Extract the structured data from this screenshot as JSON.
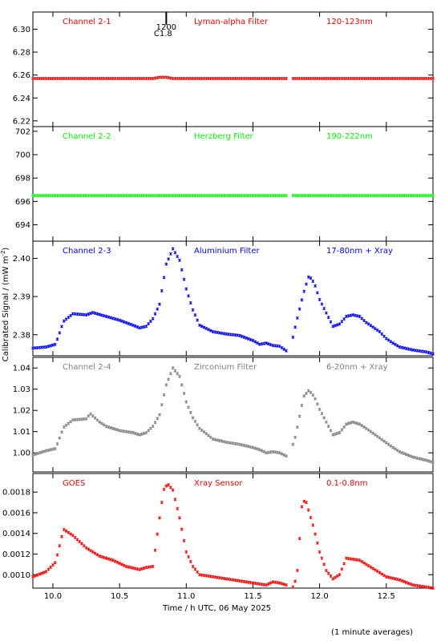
{
  "chart_data": [
    {
      "type": "scatter",
      "channel_label": "Channel 2-1",
      "filter_label": "Lyman-alpha Filter",
      "wavelength_label": "120-123nm",
      "color": "#ff0000",
      "ylim": [
        6.215,
        6.315
      ],
      "yticks": [
        "6.22",
        "6.24",
        "6.26",
        "6.28",
        "6.30"
      ],
      "series": [
        {
          "x": [
            9.85,
            10.2,
            10.5,
            10.75,
            10.8,
            10.85,
            10.9,
            11.2,
            11.6,
            12.0,
            12.4,
            12.85
          ],
          "y": [
            6.257,
            6.257,
            6.257,
            6.257,
            6.258,
            6.258,
            6.257,
            6.257,
            6.257,
            6.257,
            6.257,
            6.257
          ]
        }
      ],
      "marker": {
        "x": 10.85,
        "label_time": "1200",
        "label_class": "C1.8"
      }
    },
    {
      "type": "scatter",
      "channel_label": "Channel 2-2",
      "filter_label": "Herzberg Filter",
      "wavelength_label": "190-222nm",
      "color": "#00ff00",
      "ylim": [
        692.6,
        702.4
      ],
      "yticks": [
        "694",
        "696",
        "698",
        "700",
        "702"
      ],
      "series": [
        {
          "x": [
            9.85,
            10.2,
            10.6,
            11.0,
            11.4,
            11.8,
            12.2,
            12.6,
            12.85
          ],
          "y": [
            696.5,
            696.5,
            696.5,
            696.5,
            696.5,
            696.5,
            696.5,
            696.5,
            696.5
          ]
        }
      ]
    },
    {
      "type": "scatter",
      "channel_label": "Channel 2-3",
      "filter_label": "Aluminium Filter",
      "wavelength_label": "17-80nm + Xray",
      "color": "#0000ff",
      "ylim": [
        2.3745,
        2.4045
      ],
      "yticks": [
        "2.38",
        "2.39",
        "2.40"
      ],
      "series": [
        {
          "x": [
            9.85,
            9.95,
            10.02,
            10.08,
            10.15,
            10.25,
            10.3,
            10.4,
            10.5,
            10.6,
            10.65,
            10.7,
            10.75,
            10.8,
            10.85,
            10.9,
            10.95,
            11.0,
            11.05,
            11.1,
            11.2,
            11.3,
            11.4,
            11.5,
            11.55,
            11.6,
            11.65,
            11.7,
            11.75,
            11.78,
            11.82,
            11.88,
            11.92,
            11.96,
            12.0,
            12.1,
            12.15,
            12.2,
            12.25,
            12.3,
            12.35,
            12.45,
            12.5,
            12.55,
            12.6,
            12.7,
            12.8,
            12.85
          ],
          "y": [
            2.3765,
            2.3768,
            2.3775,
            2.3835,
            2.3855,
            2.3852,
            2.3858,
            2.3848,
            2.3838,
            2.3825,
            2.3818,
            2.3822,
            2.3842,
            2.388,
            2.3985,
            2.4025,
            2.3995,
            2.392,
            2.3865,
            2.3825,
            2.3808,
            2.3802,
            2.3798,
            2.3785,
            2.3775,
            2.3778,
            2.3772,
            2.377,
            2.3758,
            2.3762,
            2.3825,
            2.391,
            2.3955,
            2.3935,
            2.3892,
            2.3822,
            2.3828,
            2.3848,
            2.3852,
            2.3848,
            2.3832,
            2.3808,
            2.379,
            2.3778,
            2.3768,
            2.376,
            2.3755,
            2.375
          ]
        }
      ]
    },
    {
      "type": "scatter",
      "channel_label": "Channel 2-4",
      "filter_label": "Zirconium Filter",
      "wavelength_label": "6-20nm + Xray",
      "color": "#808080",
      "ylim": [
        0.991,
        1.045
      ],
      "yticks": [
        "1.00",
        "1.01",
        "1.02",
        "1.03",
        "1.04"
      ],
      "series": [
        {
          "x": [
            9.85,
            9.95,
            10.02,
            10.08,
            10.15,
            10.25,
            10.28,
            10.35,
            10.4,
            10.5,
            10.6,
            10.65,
            10.7,
            10.75,
            10.8,
            10.85,
            10.9,
            10.95,
            11.0,
            11.05,
            11.1,
            11.2,
            11.3,
            11.4,
            11.5,
            11.55,
            11.6,
            11.65,
            11.7,
            11.75,
            11.78,
            11.82,
            11.88,
            11.92,
            11.96,
            12.0,
            12.1,
            12.15,
            12.2,
            12.25,
            12.3,
            12.35,
            12.45,
            12.55,
            12.6,
            12.7,
            12.8,
            12.85
          ],
          "y": [
            0.999,
            1.001,
            1.002,
            1.012,
            1.0155,
            1.016,
            1.0185,
            1.0145,
            1.0125,
            1.0105,
            1.0095,
            1.0085,
            1.0095,
            1.0125,
            1.018,
            1.032,
            1.04,
            1.036,
            1.024,
            1.0165,
            1.0115,
            1.0065,
            1.005,
            1.004,
            1.0025,
            1.0015,
            1.0,
            1.0005,
            1.0,
            0.9985,
            1.0,
            1.008,
            1.0265,
            1.0295,
            1.0265,
            1.0205,
            1.0085,
            1.0095,
            1.0135,
            1.0145,
            1.0135,
            1.0115,
            1.007,
            1.0025,
            1.0005,
            0.998,
            0.9965,
            0.9955
          ]
        }
      ]
    },
    {
      "type": "scatter",
      "channel_label": "GOES",
      "filter_label": "Xray Sensor",
      "wavelength_label": "0.1-0.8nm",
      "color": "#ff0000",
      "ylim": [
        0.00087,
        0.00198
      ],
      "yticks": [
        "0.0010",
        "0.0012",
        "0.0014",
        "0.0016",
        "0.0018"
      ],
      "xlim": [
        9.85,
        12.85
      ],
      "xticks": [
        "10.0",
        "10.5",
        "11.0",
        "11.5",
        "12.0",
        "12.5"
      ],
      "xlabel": "Time / h UTC, 06 May 2025",
      "series": [
        {
          "x": [
            9.85,
            9.95,
            10.02,
            10.08,
            10.15,
            10.25,
            10.35,
            10.45,
            10.55,
            10.65,
            10.7,
            10.75,
            10.8,
            10.83,
            10.86,
            10.9,
            10.95,
            11.0,
            11.05,
            11.1,
            11.2,
            11.3,
            11.4,
            11.5,
            11.6,
            11.65,
            11.7,
            11.75,
            11.8,
            11.83,
            11.87,
            11.9,
            11.95,
            12.0,
            12.05,
            12.1,
            12.15,
            12.2,
            12.3,
            12.4,
            12.5,
            12.6,
            12.7,
            12.8,
            12.85
          ],
          "y": [
            0.00098,
            0.00103,
            0.00112,
            0.00144,
            0.00138,
            0.00126,
            0.00118,
            0.00114,
            0.00108,
            0.00105,
            0.00107,
            0.00108,
            0.00155,
            0.00182,
            0.00188,
            0.00182,
            0.00155,
            0.00122,
            0.00108,
            0.001,
            0.00098,
            0.00096,
            0.00094,
            0.00092,
            0.0009,
            0.00093,
            0.00092,
            0.0009,
            0.00088,
            0.00098,
            0.00172,
            0.0017,
            0.00148,
            0.00122,
            0.00104,
            0.00096,
            0.001,
            0.00116,
            0.00114,
            0.00106,
            0.00098,
            0.00095,
            0.0009,
            0.00088,
            0.00087
          ]
        }
      ]
    }
  ],
  "ylabel": "Calibrated Signal / (mW m",
  "ylabel_superscript": "-2",
  "ylabel_close": ")",
  "footnote": "(1 minute averages)"
}
